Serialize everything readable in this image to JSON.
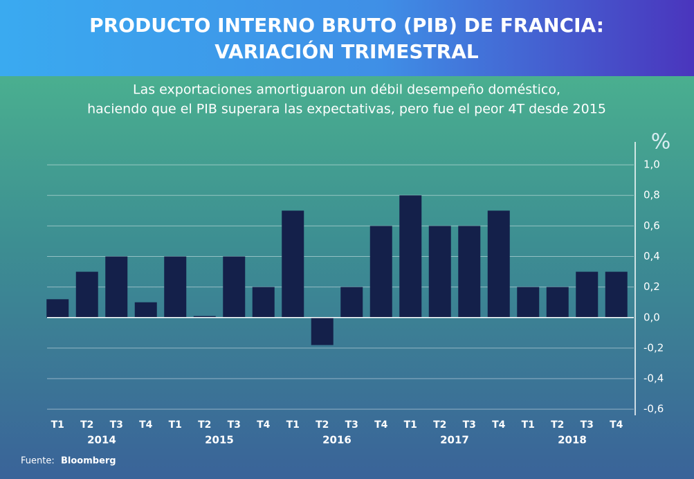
{
  "chart_data": {
    "type": "bar",
    "title": [
      "PRODUCTO INTERNO BRUTO (PIB) DE FRANCIA:",
      "VARIACIÓN TRIMESTRAL"
    ],
    "subtitle": [
      "Las exportaciones amortiguaron un débil desempeño doméstico,",
      "haciendo que el PIB superara las expectativas, pero fue el peor 4T desde 2015"
    ],
    "unit": "%",
    "categories": [
      "T1",
      "T2",
      "T3",
      "T4",
      "T1",
      "T2",
      "T3",
      "T4",
      "T1",
      "T2",
      "T3",
      "T4",
      "T1",
      "T2",
      "T3",
      "T4",
      "T1",
      "T2",
      "T3",
      "T4"
    ],
    "years": [
      "2014",
      "2015",
      "2016",
      "2017",
      "2018"
    ],
    "values": [
      0.12,
      0.3,
      0.4,
      0.1,
      0.4,
      0.01,
      0.4,
      0.2,
      0.7,
      -0.18,
      0.2,
      0.6,
      0.8,
      0.6,
      0.6,
      0.7,
      0.2,
      0.2,
      0.3,
      0.3
    ],
    "color": "#14204a",
    "ylim": [
      -0.64,
      1.15
    ],
    "yticks": [
      {
        "value": 1.0,
        "label": "1,0"
      },
      {
        "value": 0.8,
        "label": "0,8"
      },
      {
        "value": 0.6,
        "label": "0,6"
      },
      {
        "value": 0.4,
        "label": "0,4"
      },
      {
        "value": 0.2,
        "label": "0,2"
      },
      {
        "value": 0,
        "label": "0,0"
      },
      {
        "value": -0.2,
        "label": "-0,2"
      },
      {
        "value": -0.4,
        "label": "-0,4"
      },
      {
        "value": -0.6,
        "label": "-0,6"
      }
    ],
    "grid": true,
    "source_label": "Fuente:",
    "source": "Bloomberg"
  }
}
